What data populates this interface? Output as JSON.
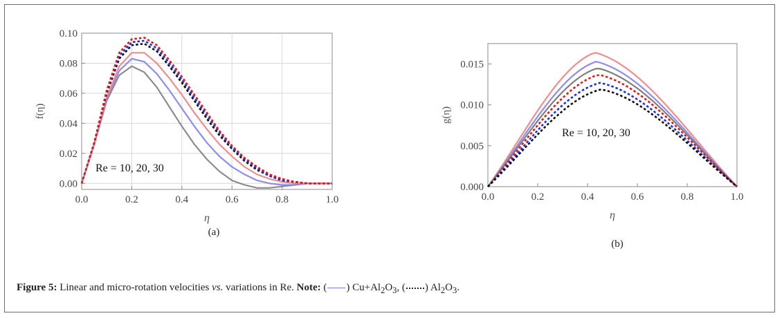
{
  "caption": {
    "label": "Figure 5:",
    "text": " Linear and micro-rotation velocities ",
    "vs": "vs.",
    "text2": " variations in Re. ",
    "note": "Note:",
    "open1": " (",
    "close1": ") Cu+Al",
    "sub2": "2",
    "o1": "O",
    "sub3": "3",
    "open2": ", (",
    "close2": ") Al",
    "sub2b": "2",
    "o2": "O",
    "sub3b": "3",
    "end": "."
  },
  "chart_data": [
    {
      "type": "line",
      "panel_label": "(a)",
      "xlabel": "η",
      "ylabel": "f(η)",
      "annotation": "Re = 10, 20, 30",
      "xlim": [
        0,
        1
      ],
      "ylim": [
        -0.004,
        0.1
      ],
      "xticks": [
        "0.0",
        "0.2",
        "0.4",
        "0.6",
        "0.8",
        "1.0"
      ],
      "yticks": [
        "0.00",
        "0.02",
        "0.04",
        "0.06",
        "0.08",
        "0.10"
      ],
      "grid": true,
      "series": [
        {
          "style": "solid",
          "color": "#7f7f7f",
          "x": [
            0,
            0.05,
            0.1,
            0.15,
            0.2,
            0.25,
            0.3,
            0.35,
            0.4,
            0.45,
            0.5,
            0.55,
            0.6,
            0.65,
            0.7,
            0.75,
            0.8,
            0.85,
            0.9,
            0.95,
            1.0
          ],
          "y": [
            0,
            0.026,
            0.055,
            0.072,
            0.078,
            0.074,
            0.064,
            0.051,
            0.038,
            0.026,
            0.016,
            0.008,
            0.002,
            -0.001,
            -0.003,
            -0.003,
            -0.002,
            -0.001,
            0.0,
            0.0,
            0.0
          ]
        },
        {
          "style": "solid",
          "color": "#8080f0",
          "x": [
            0,
            0.05,
            0.1,
            0.15,
            0.2,
            0.25,
            0.3,
            0.35,
            0.4,
            0.45,
            0.5,
            0.55,
            0.6,
            0.65,
            0.7,
            0.75,
            0.8,
            0.85,
            0.9,
            0.95,
            1.0
          ],
          "y": [
            0,
            0.026,
            0.056,
            0.075,
            0.083,
            0.081,
            0.073,
            0.062,
            0.05,
            0.038,
            0.027,
            0.018,
            0.011,
            0.006,
            0.002,
            0.0,
            -0.001,
            -0.001,
            0.0,
            0.0,
            0.0
          ]
        },
        {
          "style": "solid",
          "color": "#f08080",
          "x": [
            0,
            0.05,
            0.1,
            0.15,
            0.2,
            0.25,
            0.3,
            0.35,
            0.4,
            0.45,
            0.5,
            0.55,
            0.6,
            0.65,
            0.7,
            0.75,
            0.8,
            0.85,
            0.9,
            0.95,
            1.0
          ],
          "y": [
            0,
            0.026,
            0.057,
            0.078,
            0.087,
            0.087,
            0.08,
            0.07,
            0.059,
            0.047,
            0.036,
            0.026,
            0.018,
            0.011,
            0.006,
            0.003,
            0.001,
            0.0,
            0.0,
            0.0,
            0.0
          ]
        },
        {
          "style": "dotted",
          "color": "#111111",
          "x": [
            0,
            0.05,
            0.1,
            0.15,
            0.2,
            0.25,
            0.3,
            0.35,
            0.4,
            0.45,
            0.5,
            0.55,
            0.6,
            0.65,
            0.7,
            0.75,
            0.8,
            0.85,
            0.9,
            0.95,
            1.0
          ],
          "y": [
            0,
            0.027,
            0.06,
            0.083,
            0.092,
            0.093,
            0.088,
            0.078,
            0.067,
            0.055,
            0.043,
            0.032,
            0.023,
            0.015,
            0.009,
            0.005,
            0.002,
            0.001,
            0.0,
            0.0,
            0.0
          ]
        },
        {
          "style": "dotted",
          "color": "#1a2ee8",
          "x": [
            0,
            0.05,
            0.1,
            0.15,
            0.2,
            0.25,
            0.3,
            0.35,
            0.4,
            0.45,
            0.5,
            0.55,
            0.6,
            0.65,
            0.7,
            0.75,
            0.8,
            0.85,
            0.9,
            0.95,
            1.0
          ],
          "y": [
            0,
            0.027,
            0.061,
            0.085,
            0.094,
            0.095,
            0.09,
            0.08,
            0.069,
            0.057,
            0.045,
            0.034,
            0.024,
            0.016,
            0.01,
            0.005,
            0.002,
            0.001,
            0.0,
            0.0,
            0.0
          ]
        },
        {
          "style": "dotted",
          "color": "#e01818",
          "x": [
            0,
            0.05,
            0.1,
            0.15,
            0.2,
            0.25,
            0.3,
            0.35,
            0.4,
            0.45,
            0.5,
            0.55,
            0.6,
            0.65,
            0.7,
            0.75,
            0.8,
            0.85,
            0.9,
            0.95,
            1.0
          ],
          "y": [
            0,
            0.027,
            0.062,
            0.087,
            0.096,
            0.097,
            0.092,
            0.082,
            0.071,
            0.059,
            0.047,
            0.035,
            0.025,
            0.017,
            0.011,
            0.006,
            0.003,
            0.001,
            0.0,
            0.0,
            0.0
          ]
        }
      ]
    },
    {
      "type": "line",
      "panel_label": "(b)",
      "xlabel": "η",
      "ylabel": "g(η)",
      "annotation": "Re = 10, 20, 30",
      "xlim": [
        0,
        1
      ],
      "ylim": [
        0,
        0.0175
      ],
      "xticks": [
        "0.0",
        "0.2",
        "0.4",
        "0.6",
        "0.8",
        "1.0"
      ],
      "yticks": [
        "0.000",
        "0.005",
        "0.010",
        "0.015"
      ],
      "grid": false,
      "series": [
        {
          "style": "solid",
          "color": "#f08080",
          "peak": 0.0164,
          "peak_x": 0.43
        },
        {
          "style": "solid",
          "color": "#8080f0",
          "peak": 0.0153,
          "peak_x": 0.435
        },
        {
          "style": "solid",
          "color": "#707070",
          "peak": 0.0145,
          "peak_x": 0.44
        },
        {
          "style": "dotted",
          "color": "#e01818",
          "peak": 0.0137,
          "peak_x": 0.445
        },
        {
          "style": "dotted",
          "color": "#1a2ee8",
          "peak": 0.0127,
          "peak_x": 0.45
        },
        {
          "style": "dotted",
          "color": "#111111",
          "peak": 0.0119,
          "peak_x": 0.455
        }
      ]
    }
  ]
}
